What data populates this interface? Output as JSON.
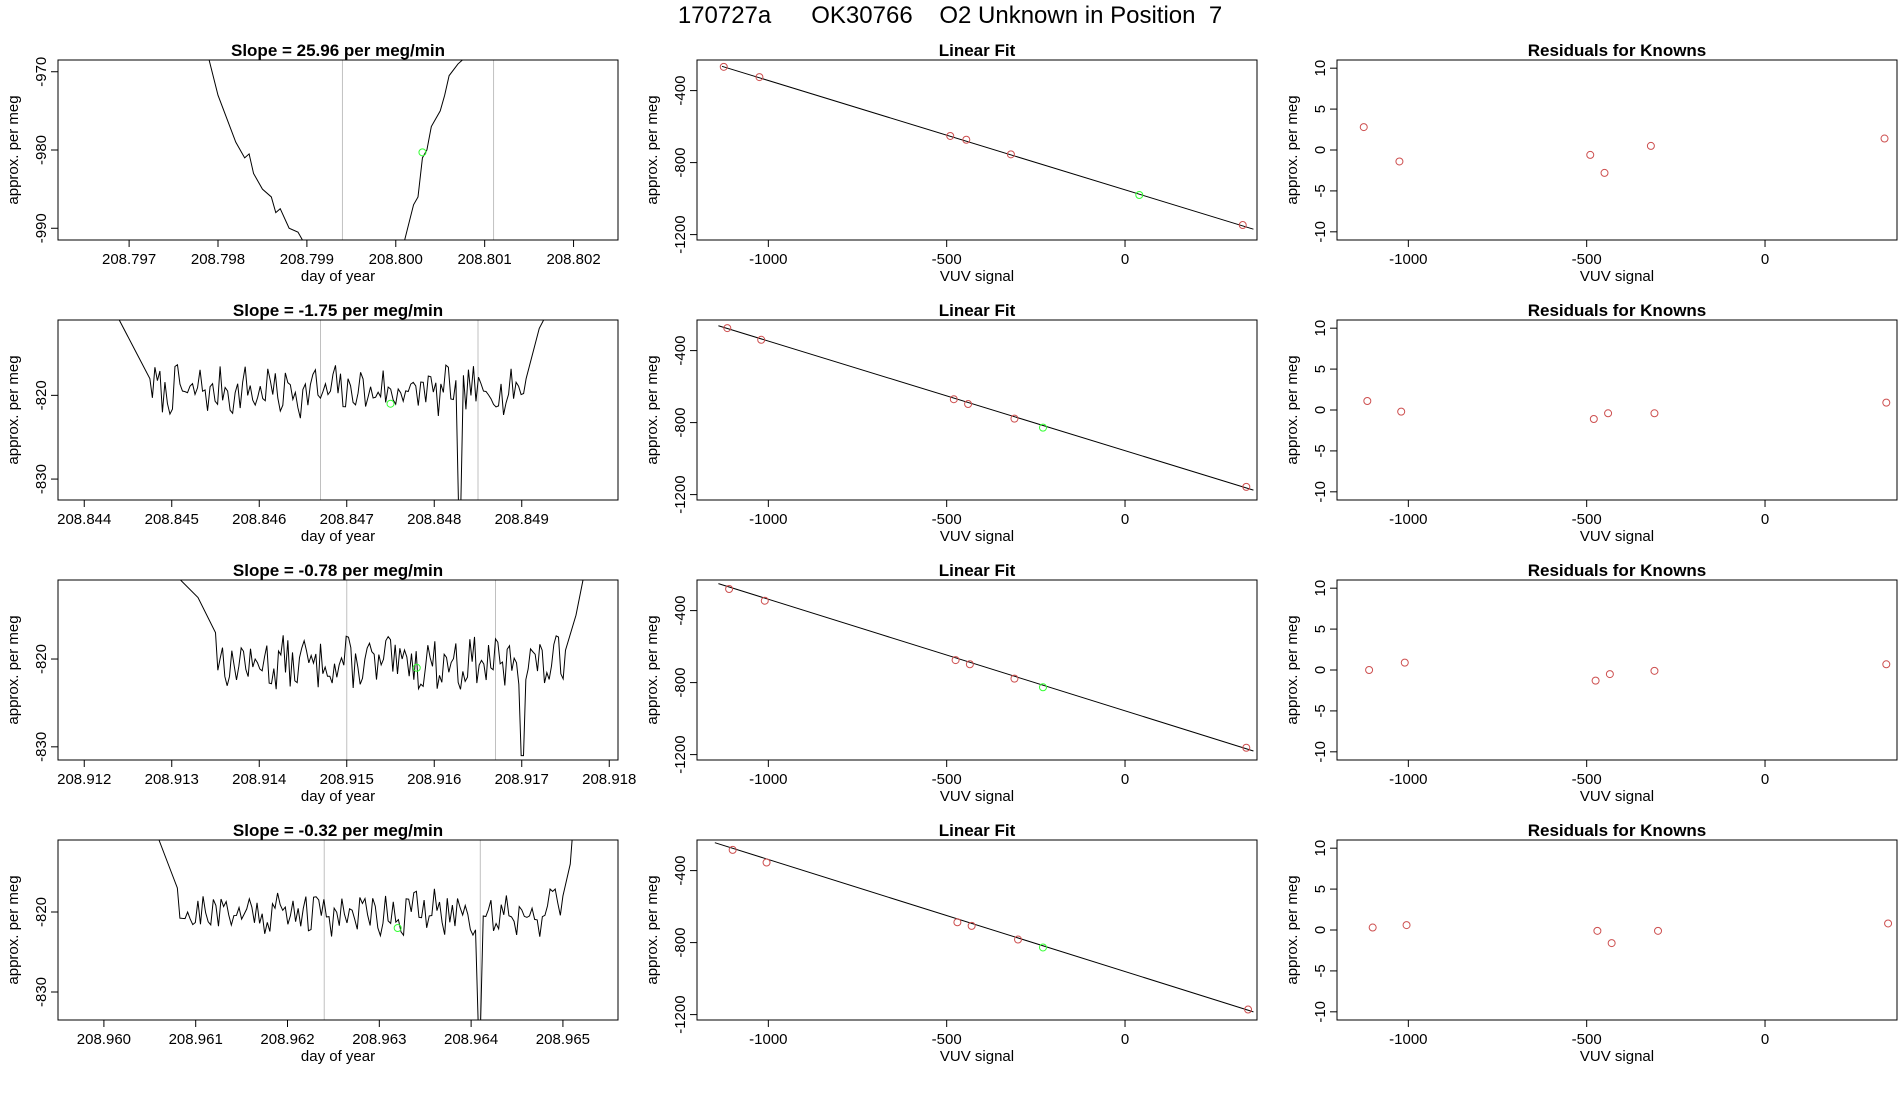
{
  "header": {
    "title": "170727a      OK30766    O2 Unknown in Position  7"
  },
  "colors": {
    "axis": "#000000",
    "trace": "#000000",
    "fit_line": "#000000",
    "known_point": "#cd4f4f",
    "unknown_point": "#33ff33",
    "marker_line": "#c0c0c0"
  },
  "chart_data": [
    {
      "type": "line",
      "row": 1,
      "title": "Slope =  25.96  per meg/min",
      "xlabel": "day of year",
      "ylabel": "approx. per meg",
      "xlim": [
        208.7962,
        208.8025
      ],
      "ylim": [
        -991.5,
        -968.5
      ],
      "xticks": [
        208.797,
        208.798,
        208.799,
        208.8,
        208.801,
        208.802
      ],
      "xtick_labels": [
        "208.797",
        "208.798",
        "208.799",
        "208.800",
        "208.801",
        "208.802"
      ],
      "yticks": [
        -970,
        -980,
        -990
      ],
      "ytick_labels": [
        "-970",
        "-980",
        "-990"
      ],
      "markers": [
        208.7994,
        208.8011
      ],
      "unknown_point": [
        208.8003,
        -980.3
      ],
      "segments": [
        [
          [
            208.7979,
            -968.5
          ],
          [
            208.798,
            -973
          ],
          [
            208.7981,
            -976
          ],
          [
            208.7982,
            -979
          ],
          [
            208.7983,
            -981
          ],
          [
            208.79835,
            -980.5
          ],
          [
            208.7984,
            -983
          ],
          [
            208.7985,
            -985
          ],
          [
            208.7986,
            -986
          ],
          [
            208.79865,
            -988
          ],
          [
            208.7987,
            -987.5
          ],
          [
            208.7988,
            -990
          ],
          [
            208.7989,
            -990.5
          ],
          [
            208.79895,
            -991.5
          ]
        ],
        [
          [
            208.8001,
            -991.5
          ],
          [
            208.8002,
            -987
          ],
          [
            208.80025,
            -986
          ],
          [
            208.8003,
            -981
          ],
          [
            208.80035,
            -980
          ],
          [
            208.8004,
            -977
          ],
          [
            208.8005,
            -975
          ],
          [
            208.80055,
            -973
          ],
          [
            208.8006,
            -970.5
          ],
          [
            208.8007,
            -969
          ],
          [
            208.80075,
            -968.5
          ]
        ]
      ]
    },
    {
      "type": "line",
      "row": 2,
      "title": "Slope =  -1.75  per meg/min",
      "xlabel": "day of year",
      "ylabel": "approx. per meg",
      "xlim": [
        208.8437,
        208.8501
      ],
      "ylim": [
        -832.5,
        -811
      ],
      "xticks": [
        208.844,
        208.845,
        208.846,
        208.847,
        208.848,
        208.849
      ],
      "xtick_labels": [
        "208.844",
        "208.845",
        "208.846",
        "208.847",
        "208.848",
        "208.849"
      ],
      "yticks": [
        -820,
        -830
      ],
      "ytick_labels": [
        "-820",
        "-830"
      ],
      "markers": [
        208.8467,
        208.8485
      ],
      "unknown_point": [
        208.8475,
        -821
      ],
      "dips": [
        {
          "x": 208.8483,
          "y": -832.5
        }
      ],
      "trace": {
        "x_start": 208.84475,
        "x_end": 208.84905,
        "level": -819.5,
        "noise": 2.5,
        "seed": 7,
        "lead_in": [
          [
            208.8444,
            -811
          ],
          [
            208.8446,
            -815
          ],
          [
            208.84475,
            -818
          ]
        ],
        "lead_out": [
          [
            208.84905,
            -818
          ],
          [
            208.8492,
            -812
          ],
          [
            208.84925,
            -811
          ]
        ]
      }
    },
    {
      "type": "line",
      "row": 3,
      "title": "Slope =  -0.78  per meg/min",
      "xlabel": "day of year",
      "ylabel": "approx. per meg",
      "xlim": [
        208.9117,
        208.9181
      ],
      "ylim": [
        -831.5,
        -811
      ],
      "xticks": [
        208.912,
        208.913,
        208.914,
        208.915,
        208.916,
        208.917,
        208.918
      ],
      "xtick_labels": [
        "208.912",
        "208.913",
        "208.914",
        "208.915",
        "208.916",
        "208.917",
        "208.918"
      ],
      "yticks": [
        -820,
        -830
      ],
      "ytick_labels": [
        "-820",
        "-830"
      ],
      "markers": [
        208.915,
        208.9167
      ],
      "unknown_point": [
        208.9158,
        -821
      ],
      "dips": [
        {
          "x": 208.917,
          "y": -831
        }
      ],
      "trace": {
        "x_start": 208.9135,
        "x_end": 208.9175,
        "level": -820.5,
        "noise": 2.5,
        "seed": 13,
        "lead_in": [
          [
            208.9131,
            -811
          ],
          [
            208.9133,
            -813
          ],
          [
            208.9135,
            -817
          ]
        ],
        "lead_out": [
          [
            208.9175,
            -819
          ],
          [
            208.91762,
            -815
          ],
          [
            208.9177,
            -811
          ]
        ]
      }
    },
    {
      "type": "line",
      "row": 4,
      "title": "Slope =  -0.32  per meg/min",
      "xlabel": "day of year",
      "ylabel": "approx. per meg",
      "xlim": [
        208.9595,
        208.9656
      ],
      "ylim": [
        -833.5,
        -811
      ],
      "xticks": [
        208.96,
        208.961,
        208.962,
        208.963,
        208.964,
        208.965
      ],
      "xtick_labels": [
        "208.960",
        "208.961",
        "208.962",
        "208.963",
        "208.964",
        "208.965"
      ],
      "yticks": [
        -820,
        -830
      ],
      "ytick_labels": [
        "-820",
        "-830"
      ],
      "markers": [
        208.9624,
        208.9641
      ],
      "unknown_point": [
        208.9632,
        -822
      ],
      "dips": [
        {
          "x": 208.9641,
          "y": -833.5
        }
      ],
      "trace": {
        "x_start": 208.9608,
        "x_end": 208.965,
        "level": -820,
        "noise": 2.5,
        "seed": 21,
        "lead_in": [
          [
            208.9606,
            -811
          ],
          [
            208.9607,
            -814
          ],
          [
            208.9608,
            -817
          ]
        ],
        "lead_out": [
          [
            208.965,
            -818
          ],
          [
            208.96508,
            -814
          ],
          [
            208.9651,
            -811
          ]
        ]
      }
    },
    {
      "type": "scatter",
      "row": 1,
      "title": "Linear Fit",
      "xlabel": "VUV signal",
      "ylabel": "approx. per meg",
      "xlim": [
        -1200,
        370
      ],
      "ylim": [
        -1230,
        -230
      ],
      "xticks": [
        -1000,
        -500,
        0
      ],
      "xtick_labels": [
        "-1000",
        "-500",
        "0"
      ],
      "yticks": [
        -400,
        -800,
        -1200
      ],
      "ytick_labels": [
        "-400",
        "-800",
        "-1200"
      ],
      "fit_line": [
        [
          -1130,
          -265
        ],
        [
          360,
          -1170
        ]
      ],
      "knowns": [
        [
          -1125,
          -268
        ],
        [
          -1025,
          -325
        ],
        [
          -490,
          -652
        ],
        [
          -445,
          -673
        ],
        [
          -320,
          -754
        ],
        [
          330,
          -1147
        ]
      ],
      "unknown": [
        [
          40,
          -980
        ]
      ]
    },
    {
      "type": "scatter",
      "row": 2,
      "title": "Linear Fit",
      "xlabel": "VUV signal",
      "ylabel": "approx. per meg",
      "xlim": [
        -1200,
        370
      ],
      "ylim": [
        -1230,
        -230
      ],
      "xticks": [
        -1000,
        -500,
        0
      ],
      "xtick_labels": [
        "-1000",
        "-500",
        "0"
      ],
      "yticks": [
        -400,
        -800,
        -1200
      ],
      "ytick_labels": [
        "-400",
        "-800",
        "-1200"
      ],
      "fit_line": [
        [
          -1140,
          -262
        ],
        [
          360,
          -1175
        ]
      ],
      "knowns": [
        [
          -1115,
          -275
        ],
        [
          -1020,
          -340
        ],
        [
          -480,
          -670
        ],
        [
          -440,
          -697
        ],
        [
          -310,
          -778
        ],
        [
          340,
          -1157
        ]
      ],
      "unknown": [
        [
          -230,
          -828
        ]
      ]
    },
    {
      "type": "scatter",
      "row": 3,
      "title": "Linear Fit",
      "xlabel": "VUV signal",
      "ylabel": "approx. per meg",
      "xlim": [
        -1200,
        370
      ],
      "ylim": [
        -1230,
        -230
      ],
      "xticks": [
        -1000,
        -500,
        0
      ],
      "xtick_labels": [
        "-1000",
        "-500",
        "0"
      ],
      "yticks": [
        -400,
        -800,
        -1200
      ],
      "ytick_labels": [
        "-400",
        "-800",
        "-1200"
      ],
      "fit_line": [
        [
          -1140,
          -250
        ],
        [
          360,
          -1180
        ]
      ],
      "knowns": [
        [
          -1110,
          -280
        ],
        [
          -1010,
          -345
        ],
        [
          -475,
          -675
        ],
        [
          -435,
          -698
        ],
        [
          -310,
          -778
        ],
        [
          340,
          -1162
        ]
      ],
      "unknown": [
        [
          -230,
          -826
        ]
      ]
    },
    {
      "type": "scatter",
      "row": 4,
      "title": "Linear Fit",
      "xlabel": "VUV signal",
      "ylabel": "approx. per meg",
      "xlim": [
        -1200,
        370
      ],
      "ylim": [
        -1230,
        -230
      ],
      "xticks": [
        -1000,
        -500,
        0
      ],
      "xtick_labels": [
        "-1000",
        "-500",
        "0"
      ],
      "yticks": [
        -400,
        -800,
        -1200
      ],
      "ytick_labels": [
        "-400",
        "-800",
        "-1200"
      ],
      "fit_line": [
        [
          -1150,
          -245
        ],
        [
          360,
          -1185
        ]
      ],
      "knowns": [
        [
          -1100,
          -285
        ],
        [
          -1005,
          -355
        ],
        [
          -470,
          -687
        ],
        [
          -430,
          -707
        ],
        [
          -300,
          -783
        ],
        [
          345,
          -1172
        ]
      ],
      "unknown": [
        [
          -230,
          -827
        ]
      ]
    },
    {
      "type": "scatter",
      "row": 1,
      "title": "Residuals for Knowns",
      "xlabel": "VUV signal",
      "ylabel": "approx. per meg",
      "xlim": [
        -1200,
        370
      ],
      "ylim": [
        -11,
        11
      ],
      "xticks": [
        -1000,
        -500,
        0
      ],
      "xtick_labels": [
        "-1000",
        "-500",
        "0"
      ],
      "yticks": [
        10,
        5,
        0,
        -5,
        -10
      ],
      "ytick_labels": [
        "10",
        "5",
        "0",
        "-5",
        "-10"
      ],
      "knowns": [
        [
          -1125,
          2.8
        ],
        [
          -1025,
          -1.4
        ],
        [
          -490,
          -0.6
        ],
        [
          -450,
          -2.8
        ],
        [
          -320,
          0.5
        ],
        [
          335,
          1.4
        ]
      ]
    },
    {
      "type": "scatter",
      "row": 2,
      "title": "Residuals for Knowns",
      "xlabel": "VUV signal",
      "ylabel": "approx. per meg",
      "xlim": [
        -1200,
        370
      ],
      "ylim": [
        -11,
        11
      ],
      "xticks": [
        -1000,
        -500,
        0
      ],
      "xtick_labels": [
        "-1000",
        "-500",
        "0"
      ],
      "yticks": [
        10,
        5,
        0,
        -5,
        -10
      ],
      "ytick_labels": [
        "10",
        "5",
        "0",
        "-5",
        "-10"
      ],
      "knowns": [
        [
          -1115,
          1.1
        ],
        [
          -1020,
          -0.2
        ],
        [
          -480,
          -1.1
        ],
        [
          -440,
          -0.4
        ],
        [
          -310,
          -0.4
        ],
        [
          340,
          0.9
        ]
      ]
    },
    {
      "type": "scatter",
      "row": 3,
      "title": "Residuals for Knowns",
      "xlabel": "VUV signal",
      "ylabel": "approx. per meg",
      "xlim": [
        -1200,
        370
      ],
      "ylim": [
        -11,
        11
      ],
      "xticks": [
        -1000,
        -500,
        0
      ],
      "xtick_labels": [
        "-1000",
        "-500",
        "0"
      ],
      "yticks": [
        10,
        5,
        0,
        -5,
        -10
      ],
      "ytick_labels": [
        "10",
        "5",
        "0",
        "-5",
        "-10"
      ],
      "knowns": [
        [
          -1110,
          0.0
        ],
        [
          -1010,
          0.9
        ],
        [
          -475,
          -1.3
        ],
        [
          -435,
          -0.5
        ],
        [
          -310,
          -0.1
        ],
        [
          340,
          0.7
        ]
      ]
    },
    {
      "type": "scatter",
      "row": 4,
      "title": "Residuals for Knowns",
      "xlabel": "VUV signal",
      "ylabel": "approx. per meg",
      "xlim": [
        -1200,
        370
      ],
      "ylim": [
        -11,
        11
      ],
      "xticks": [
        -1000,
        -500,
        0
      ],
      "xtick_labels": [
        "-1000",
        "-500",
        "0"
      ],
      "yticks": [
        10,
        5,
        0,
        -5,
        -10
      ],
      "ytick_labels": [
        "10",
        "5",
        "0",
        "-5",
        "-10"
      ],
      "knowns": [
        [
          -1100,
          0.3
        ],
        [
          -1005,
          0.6
        ],
        [
          -470,
          -0.1
        ],
        [
          -430,
          -1.6
        ],
        [
          -300,
          -0.1
        ],
        [
          345,
          0.8
        ]
      ]
    }
  ]
}
